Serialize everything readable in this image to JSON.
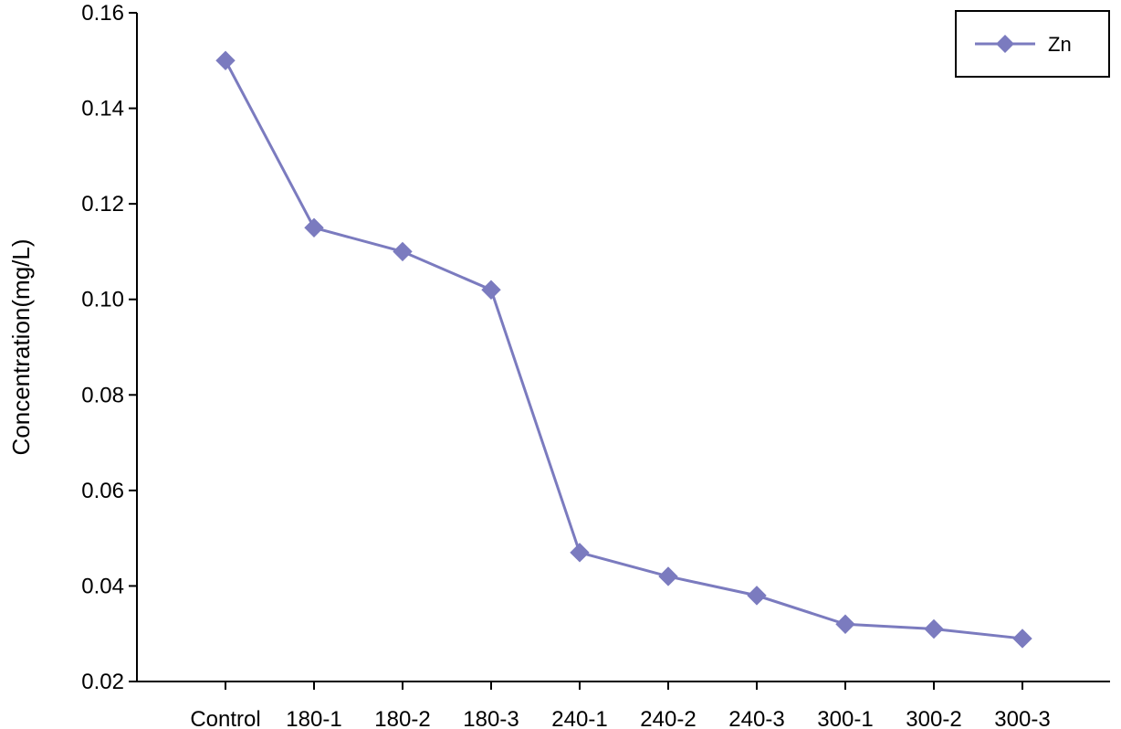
{
  "chart_data": {
    "type": "line",
    "title": "",
    "xlabel": "",
    "ylabel": "Concentration(mg/L)",
    "categories": [
      "Control",
      "180-1",
      "180-2",
      "180-3",
      "240-1",
      "240-2",
      "240-3",
      "300-1",
      "300-2",
      "300-3"
    ],
    "series": [
      {
        "name": "Zn",
        "color": "#7b7bbf",
        "marker": "diamond",
        "values": [
          0.15,
          0.115,
          0.11,
          0.102,
          0.047,
          0.042,
          0.038,
          0.032,
          0.031,
          0.029
        ]
      }
    ],
    "ylim": [
      0.02,
      0.16
    ],
    "yticks": [
      "0.02",
      "0.04",
      "0.06",
      "0.08",
      "0.10",
      "0.12",
      "0.14",
      "0.16"
    ],
    "grid": false,
    "legend": {
      "position": "top-right",
      "entries": [
        "Zn"
      ]
    }
  }
}
